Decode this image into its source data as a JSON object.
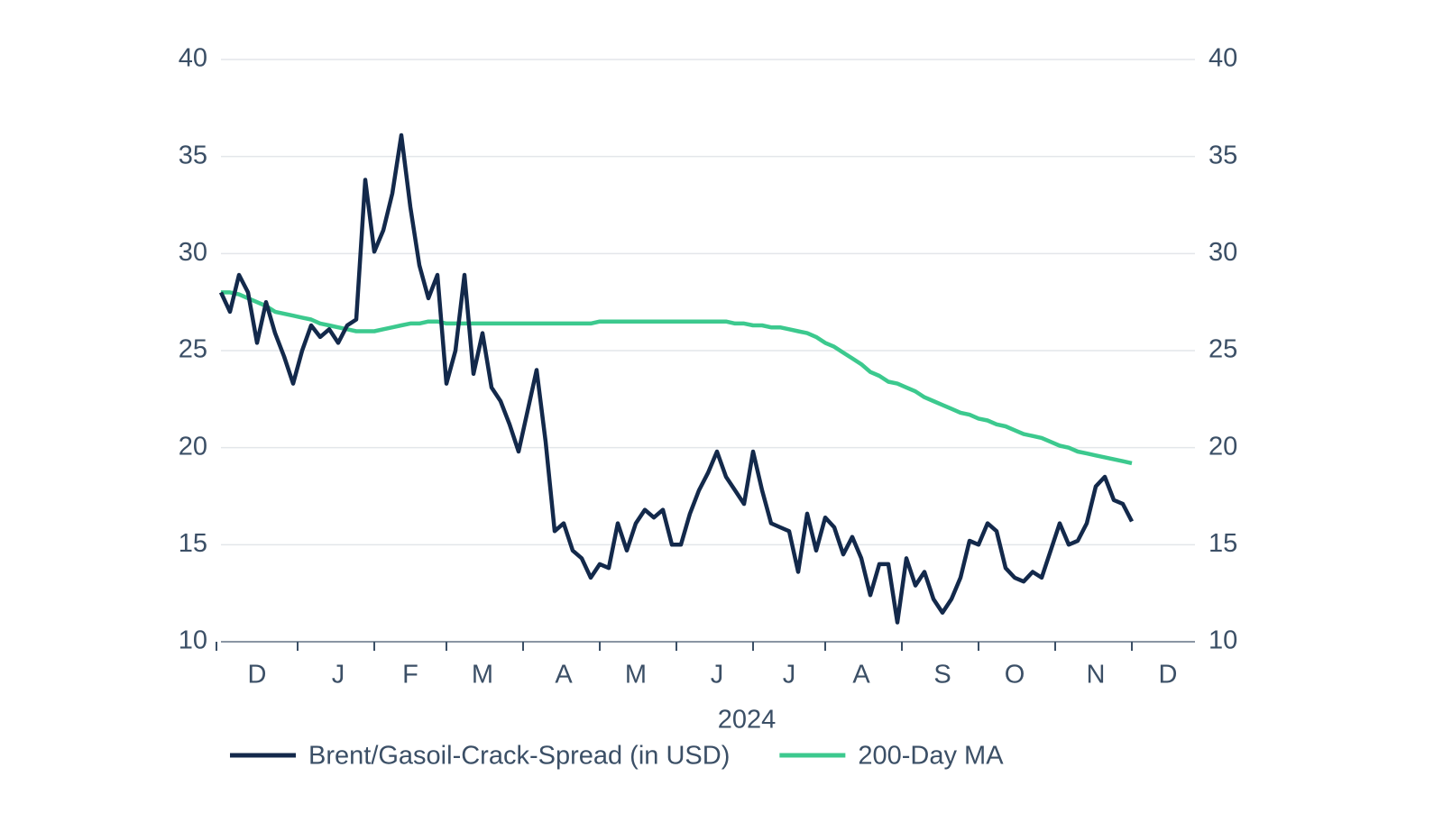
{
  "chart_data": {
    "type": "line",
    "categories": [
      null,
      null,
      null,
      null,
      "D",
      null,
      null,
      null,
      null,
      null,
      null,
      null,
      null,
      "J",
      null,
      null,
      null,
      null,
      null,
      null,
      null,
      "F",
      null,
      null,
      null,
      null,
      null,
      null,
      null,
      "M",
      null,
      null,
      null,
      null,
      null,
      null,
      null,
      null,
      "A",
      null,
      null,
      null,
      null,
      null,
      null,
      null,
      "M",
      null,
      null,
      null,
      null,
      null,
      null,
      null,
      null,
      "J",
      null,
      null,
      null,
      null,
      null,
      null,
      null,
      "J",
      null,
      null,
      null,
      null,
      null,
      null,
      null,
      "A",
      null,
      null,
      null,
      null,
      null,
      null,
      null,
      null,
      "S",
      null,
      null,
      null,
      null,
      null,
      null,
      null,
      "O",
      null,
      null,
      null,
      null,
      null,
      null,
      null,
      null,
      "N",
      null,
      null,
      null,
      null,
      null,
      null,
      null,
      "D",
      null,
      null,
      null
    ],
    "xlabel": "2024",
    "series": [
      {
        "name": "Brent/Gasoil-Crack-Spread (in USD)",
        "color": "#13294b",
        "values": [
          28.0,
          27.0,
          28.9,
          28.0,
          25.4,
          27.5,
          25.9,
          24.7,
          23.3,
          25.0,
          26.3,
          25.7,
          26.1,
          25.4,
          26.3,
          26.6,
          33.8,
          30.1,
          31.2,
          33.1,
          36.1,
          32.4,
          29.4,
          27.7,
          28.9,
          23.3,
          25.0,
          28.9,
          23.8,
          25.9,
          23.1,
          22.4,
          21.2,
          19.8,
          21.9,
          24.0,
          20.3,
          15.7,
          16.1,
          14.7,
          14.3,
          13.3,
          14.0,
          13.8,
          16.1,
          14.7,
          16.1,
          16.8,
          16.4,
          16.8,
          15.0,
          15.0,
          16.6,
          17.8,
          18.7,
          19.8,
          18.5,
          17.8,
          17.1,
          19.8,
          17.8,
          16.1,
          15.9,
          15.7,
          13.6,
          16.6,
          14.7,
          16.4,
          15.9,
          14.5,
          15.4,
          14.3,
          12.4,
          14.0,
          14.0,
          11.0,
          14.3,
          12.9,
          13.6,
          12.2,
          11.5,
          12.2,
          13.3,
          15.2,
          15.0,
          16.1,
          15.7,
          13.8,
          13.3,
          13.1,
          13.6,
          13.3,
          14.7,
          16.1,
          15.0,
          15.2,
          16.1,
          18.0,
          18.5,
          17.3,
          17.1,
          16.2,
          null,
          null,
          null,
          null,
          null,
          null,
          null
        ]
      },
      {
        "name": "200-Day MA",
        "color": "#3cc98e",
        "values": [
          28.0,
          28.0,
          27.9,
          27.7,
          27.5,
          27.3,
          27.0,
          26.9,
          26.8,
          26.7,
          26.6,
          26.4,
          26.3,
          26.2,
          26.1,
          26.0,
          26.0,
          26.0,
          26.1,
          26.2,
          26.3,
          26.4,
          26.4,
          26.5,
          26.5,
          26.4,
          26.4,
          26.4,
          26.4,
          26.4,
          26.4,
          26.4,
          26.4,
          26.4,
          26.4,
          26.4,
          26.4,
          26.4,
          26.4,
          26.4,
          26.4,
          26.4,
          26.5,
          26.5,
          26.5,
          26.5,
          26.5,
          26.5,
          26.5,
          26.5,
          26.5,
          26.5,
          26.5,
          26.5,
          26.5,
          26.5,
          26.5,
          26.4,
          26.4,
          26.3,
          26.3,
          26.2,
          26.2,
          26.1,
          26.0,
          25.9,
          25.7,
          25.4,
          25.2,
          24.9,
          24.6,
          24.3,
          23.9,
          23.7,
          23.4,
          23.3,
          23.1,
          22.9,
          22.6,
          22.4,
          22.2,
          22.0,
          21.8,
          21.7,
          21.5,
          21.4,
          21.2,
          21.1,
          20.9,
          20.7,
          20.6,
          20.5,
          20.3,
          20.1,
          20.0,
          19.8,
          19.7,
          19.6,
          19.5,
          19.4,
          19.3,
          19.2,
          null,
          null,
          null,
          null,
          null,
          null,
          null
        ]
      }
    ],
    "ylim": [
      10,
      40
    ],
    "yticks": [
      10,
      15,
      20,
      25,
      30,
      35,
      40
    ],
    "y2lim": [
      10,
      40
    ],
    "y2ticks": [
      10,
      15,
      20,
      25,
      30,
      35,
      40
    ],
    "grid": true,
    "legend": "bottom"
  }
}
